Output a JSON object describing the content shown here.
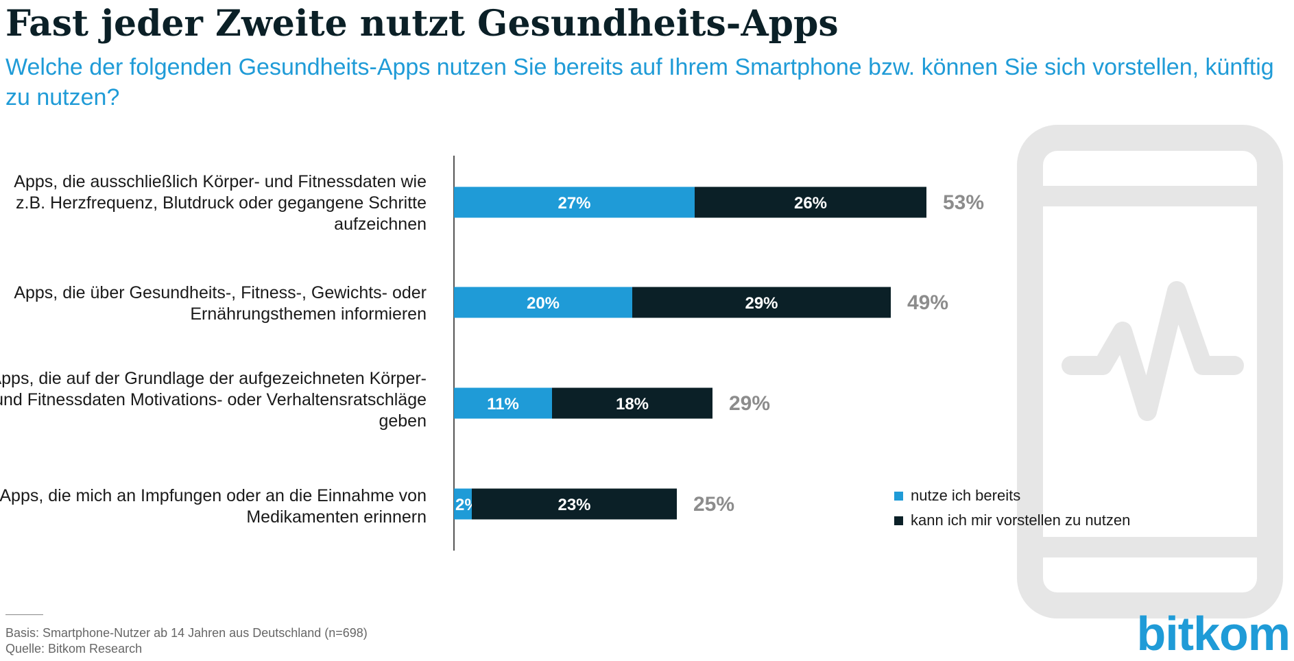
{
  "title": "Fast jeder Zweite nutzt Gesundheits-Apps",
  "subtitle": "Welche der folgenden Gesundheits-Apps nutzen Sie bereits auf Ihrem Smartphone bzw. können Sie sich vorstellen, künftig zu nutzen?",
  "colors": {
    "accent": "#1f9bd7",
    "dark": "#0b2027",
    "total": "#8c8c8c",
    "phone": "#e6e6e6"
  },
  "chart_data": {
    "type": "bar",
    "orientation": "horizontal",
    "stacked": true,
    "categories": [
      "Apps, die ausschließlich Körper- und Fitnessdaten wie z.B. Herzfrequenz, Blutdruck oder gegangene Schritte aufzeichnen",
      "Apps, die über Gesundheits-, Fitness-, Gewichts- oder Ernährungsthemen informieren",
      "Apps, die auf der Grundlage der aufgezeichneten Körper- und Fitnessdaten Motivations- oder Verhaltensratschläge geben",
      "Apps, die mich an Impfungen oder an die Einnahme von Medikamenten erinnern"
    ],
    "series": [
      {
        "name": "nutze ich bereits",
        "values": [
          27,
          20,
          11,
          2
        ],
        "labels": [
          "27%",
          "20%",
          "11%",
          "2%"
        ]
      },
      {
        "name": "kann ich mir vorstellen zu nutzen",
        "values": [
          26,
          29,
          18,
          23
        ],
        "labels": [
          "26%",
          "29%",
          "18%",
          "23%"
        ]
      }
    ],
    "totals": [
      "53%",
      "49%",
      "29%",
      "25%"
    ],
    "xlim": [
      0,
      100
    ],
    "legend": "right"
  },
  "footer": {
    "basis": "Basis: Smartphone-Nutzer ab 14 Jahren aus Deutschland (n=698)",
    "source": "Quelle: Bitkom Research"
  },
  "logo": "bitkom"
}
